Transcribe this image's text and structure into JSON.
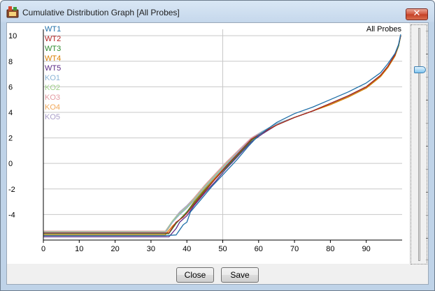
{
  "window": {
    "title": "Cumulative Distribution Graph [All Probes]",
    "close_glyph": "✕"
  },
  "buttons": {
    "close_label": "Close",
    "save_label": "Save"
  },
  "chart_data": {
    "type": "line",
    "title": "All Probes",
    "xlabel": "",
    "ylabel": "",
    "xlim": [
      0,
      100
    ],
    "ylim": [
      -6,
      10.5
    ],
    "x_ticks": [
      0,
      10,
      20,
      30,
      40,
      50,
      60,
      70,
      80,
      90
    ],
    "y_ticks": [
      10,
      8,
      6,
      4,
      2,
      0,
      -2,
      -4
    ],
    "grid": true,
    "legend_position": "top-left",
    "series": [
      {
        "name": "WT1",
        "color": "#1f6fa8",
        "values": [
          [
            0,
            -5.65
          ],
          [
            34,
            -5.65
          ],
          [
            37,
            -5.6
          ],
          [
            39,
            -4.8
          ],
          [
            40,
            -4.6
          ],
          [
            41,
            -3.8
          ],
          [
            44,
            -2.8
          ],
          [
            47,
            -1.8
          ],
          [
            50,
            -0.9
          ],
          [
            54,
            0.3
          ],
          [
            57,
            1.3
          ],
          [
            60,
            2.2
          ],
          [
            65,
            3.2
          ],
          [
            70,
            3.9
          ],
          [
            75,
            4.4
          ],
          [
            80,
            5.0
          ],
          [
            85,
            5.6
          ],
          [
            90,
            6.3
          ],
          [
            94,
            7.1
          ],
          [
            96,
            7.8
          ],
          [
            98,
            8.6
          ],
          [
            99,
            9.3
          ],
          [
            99.6,
            10.1
          ]
        ]
      },
      {
        "name": "WT2",
        "color": "#b22222",
        "values": [
          [
            0,
            -5.45
          ],
          [
            35,
            -5.45
          ],
          [
            37,
            -4.6
          ],
          [
            39,
            -4.2
          ],
          [
            40,
            -3.9
          ],
          [
            42,
            -3.2
          ],
          [
            45,
            -2.2
          ],
          [
            48,
            -1.2
          ],
          [
            51,
            -0.2
          ],
          [
            55,
            1.0
          ],
          [
            58,
            1.9
          ],
          [
            61,
            2.4
          ],
          [
            65,
            3.0
          ],
          [
            70,
            3.6
          ],
          [
            75,
            4.1
          ],
          [
            80,
            4.7
          ],
          [
            85,
            5.3
          ],
          [
            90,
            6.0
          ],
          [
            94,
            6.9
          ],
          [
            96,
            7.6
          ],
          [
            98,
            8.5
          ],
          [
            99,
            9.3
          ],
          [
            99.6,
            10.0
          ]
        ]
      },
      {
        "name": "WT3",
        "color": "#2e8b2e",
        "values": [
          [
            0,
            -5.5
          ],
          [
            35,
            -5.5
          ],
          [
            37,
            -4.7
          ],
          [
            39,
            -4.1
          ],
          [
            40,
            -3.8
          ],
          [
            42,
            -3.1
          ],
          [
            45,
            -2.1
          ],
          [
            48,
            -1.2
          ],
          [
            51,
            -0.3
          ],
          [
            55,
            0.9
          ],
          [
            58,
            1.8
          ],
          [
            61,
            2.4
          ],
          [
            65,
            3.0
          ],
          [
            70,
            3.6
          ],
          [
            75,
            4.1
          ],
          [
            80,
            4.7
          ],
          [
            85,
            5.3
          ],
          [
            90,
            6.0
          ],
          [
            94,
            6.9
          ],
          [
            96,
            7.6
          ],
          [
            98,
            8.5
          ],
          [
            99,
            9.2
          ],
          [
            99.6,
            10.0
          ]
        ]
      },
      {
        "name": "WT4",
        "color": "#d97e00",
        "values": [
          [
            0,
            -5.6
          ],
          [
            34,
            -5.6
          ],
          [
            36,
            -4.9
          ],
          [
            38,
            -4.4
          ],
          [
            40,
            -3.8
          ],
          [
            42,
            -3.0
          ],
          [
            45,
            -2.0
          ],
          [
            48,
            -1.1
          ],
          [
            51,
            -0.2
          ],
          [
            55,
            1.0
          ],
          [
            58,
            1.8
          ],
          [
            61,
            2.4
          ],
          [
            65,
            3.0
          ],
          [
            70,
            3.6
          ],
          [
            75,
            4.1
          ],
          [
            80,
            4.6
          ],
          [
            85,
            5.2
          ],
          [
            90,
            5.9
          ],
          [
            94,
            6.8
          ],
          [
            96,
            7.5
          ],
          [
            98,
            8.4
          ],
          [
            99,
            9.2
          ],
          [
            99.6,
            10.0
          ]
        ]
      },
      {
        "name": "WT5",
        "color": "#5b2a86",
        "values": [
          [
            0,
            -5.75
          ],
          [
            35,
            -5.75
          ],
          [
            37,
            -5.1
          ],
          [
            38,
            -4.6
          ],
          [
            40,
            -4.1
          ],
          [
            42,
            -3.3
          ],
          [
            45,
            -2.3
          ],
          [
            48,
            -1.4
          ],
          [
            51,
            -0.4
          ],
          [
            55,
            0.8
          ],
          [
            58,
            1.7
          ],
          [
            61,
            2.3
          ],
          [
            65,
            3.0
          ],
          [
            70,
            3.6
          ],
          [
            75,
            4.1
          ],
          [
            80,
            4.7
          ],
          [
            85,
            5.3
          ],
          [
            90,
            6.0
          ],
          [
            94,
            6.9
          ],
          [
            96,
            7.6
          ],
          [
            98,
            8.5
          ],
          [
            99,
            9.3
          ],
          [
            99.6,
            10.0
          ]
        ]
      },
      {
        "name": "KO1",
        "color": "#8ab4d6",
        "values": [
          [
            0,
            -5.4
          ],
          [
            34,
            -5.4
          ],
          [
            36,
            -4.6
          ],
          [
            38,
            -4.0
          ],
          [
            40,
            -3.5
          ],
          [
            42,
            -2.9
          ],
          [
            45,
            -1.9
          ],
          [
            48,
            -1.0
          ],
          [
            51,
            -0.1
          ],
          [
            55,
            1.1
          ],
          [
            58,
            1.9
          ],
          [
            61,
            2.5
          ],
          [
            65,
            3.1
          ],
          [
            70,
            3.6
          ],
          [
            75,
            4.1
          ],
          [
            80,
            4.7
          ],
          [
            85,
            5.3
          ],
          [
            90,
            6.0
          ],
          [
            94,
            6.9
          ],
          [
            96,
            7.6
          ],
          [
            98,
            8.5
          ],
          [
            99,
            9.2
          ],
          [
            99.6,
            10.0
          ]
        ]
      },
      {
        "name": "KO2",
        "color": "#a0cf8a",
        "values": [
          [
            0,
            -5.35
          ],
          [
            34,
            -5.35
          ],
          [
            36,
            -4.5
          ],
          [
            38,
            -3.9
          ],
          [
            40,
            -3.4
          ],
          [
            42,
            -2.8
          ],
          [
            45,
            -1.8
          ],
          [
            48,
            -0.9
          ],
          [
            51,
            0.0
          ],
          [
            55,
            1.1
          ],
          [
            58,
            1.9
          ],
          [
            61,
            2.5
          ],
          [
            65,
            3.1
          ],
          [
            70,
            3.6
          ],
          [
            75,
            4.1
          ],
          [
            80,
            4.7
          ],
          [
            85,
            5.2
          ],
          [
            90,
            5.9
          ],
          [
            94,
            6.8
          ],
          [
            96,
            7.5
          ],
          [
            98,
            8.4
          ],
          [
            99,
            9.2
          ],
          [
            99.6,
            10.0
          ]
        ]
      },
      {
        "name": "KO3",
        "color": "#e39aa0",
        "values": [
          [
            0,
            -5.3
          ],
          [
            34,
            -5.3
          ],
          [
            36,
            -4.5
          ],
          [
            38,
            -3.9
          ],
          [
            40,
            -3.4
          ],
          [
            42,
            -2.7
          ],
          [
            45,
            -1.7
          ],
          [
            48,
            -0.8
          ],
          [
            51,
            0.1
          ],
          [
            55,
            1.2
          ],
          [
            58,
            2.0
          ],
          [
            61,
            2.5
          ],
          [
            65,
            3.0
          ],
          [
            70,
            3.6
          ],
          [
            75,
            4.1
          ],
          [
            80,
            4.6
          ],
          [
            85,
            5.2
          ],
          [
            90,
            5.9
          ],
          [
            94,
            6.8
          ],
          [
            96,
            7.5
          ],
          [
            98,
            8.4
          ],
          [
            99,
            9.2
          ],
          [
            99.6,
            10.0
          ]
        ]
      },
      {
        "name": "KO4",
        "color": "#f2a95a",
        "values": [
          [
            0,
            -5.5
          ],
          [
            34,
            -5.5
          ],
          [
            36,
            -4.6
          ],
          [
            38,
            -4.0
          ],
          [
            40,
            -3.5
          ],
          [
            42,
            -2.8
          ],
          [
            45,
            -1.8
          ],
          [
            48,
            -0.9
          ],
          [
            51,
            0.0
          ],
          [
            55,
            1.1
          ],
          [
            58,
            1.9
          ],
          [
            61,
            2.5
          ],
          [
            65,
            3.0
          ],
          [
            70,
            3.6
          ],
          [
            75,
            4.1
          ],
          [
            80,
            4.6
          ],
          [
            85,
            5.2
          ],
          [
            90,
            5.9
          ],
          [
            94,
            6.8
          ],
          [
            96,
            7.5
          ],
          [
            98,
            8.4
          ],
          [
            99,
            9.2
          ],
          [
            99.6,
            10.0
          ]
        ]
      },
      {
        "name": "KO5",
        "color": "#a99ec9",
        "values": [
          [
            0,
            -5.45
          ],
          [
            34,
            -5.45
          ],
          [
            36,
            -4.5
          ],
          [
            38,
            -3.8
          ],
          [
            40,
            -3.3
          ],
          [
            42,
            -2.7
          ],
          [
            45,
            -1.7
          ],
          [
            48,
            -0.8
          ],
          [
            51,
            0.1
          ],
          [
            55,
            1.2
          ],
          [
            58,
            2.0
          ],
          [
            61,
            2.5
          ],
          [
            65,
            3.1
          ],
          [
            70,
            3.6
          ],
          [
            75,
            4.1
          ],
          [
            80,
            4.7
          ],
          [
            85,
            5.2
          ],
          [
            90,
            5.9
          ],
          [
            94,
            6.8
          ],
          [
            96,
            7.5
          ],
          [
            98,
            8.4
          ],
          [
            99,
            9.2
          ],
          [
            99.6,
            10.0
          ]
        ]
      }
    ]
  },
  "slider": {
    "value_fraction": 0.17
  }
}
